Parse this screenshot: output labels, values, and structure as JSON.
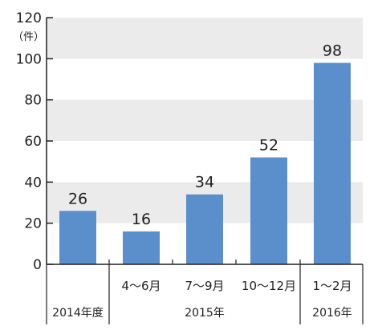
{
  "chart_data": {
    "type": "bar",
    "unit_label": "（件）",
    "ylim": [
      0,
      120
    ],
    "yticks": [
      0,
      20,
      40,
      60,
      80,
      100,
      120
    ],
    "categories": [
      "",
      "4〜6月",
      "7〜9月",
      "10〜12月",
      "1〜2月"
    ],
    "groups": [
      "2014年度",
      "2015年",
      "2016年"
    ],
    "values": [
      26,
      16,
      34,
      52,
      98
    ],
    "grid": "alternating bands",
    "colors": {
      "bar": "#5b8fcb",
      "band": "#ebebeb",
      "axis": "#231f20"
    }
  }
}
